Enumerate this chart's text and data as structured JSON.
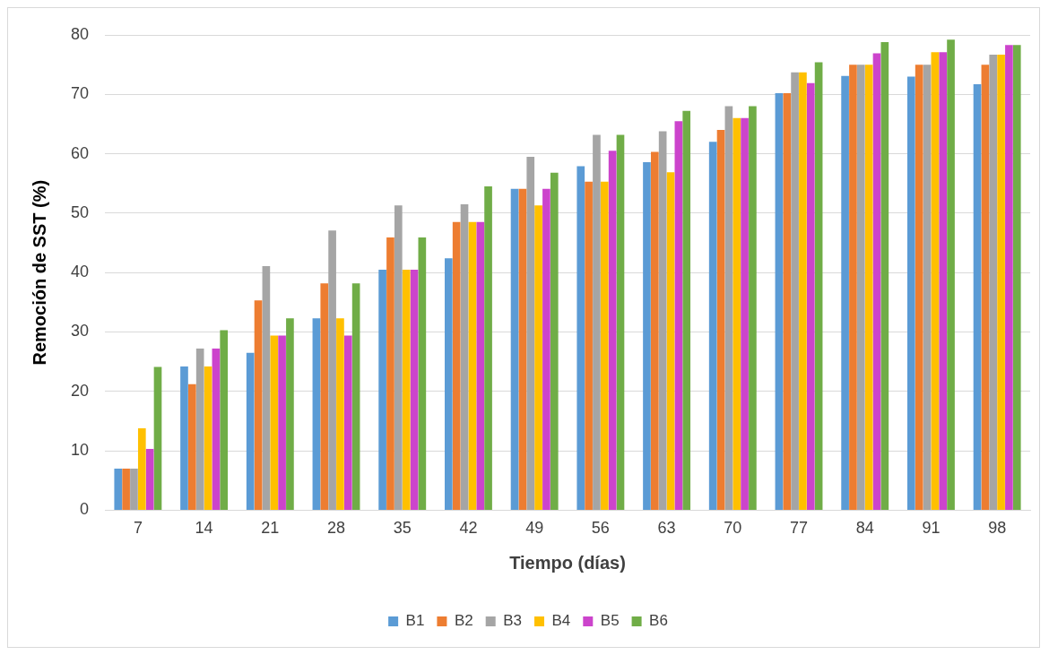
{
  "chart_data": {
    "type": "bar",
    "xlabel": "Tiempo (días)",
    "ylabel": "Remoción de SST (%)",
    "categories": [
      "7",
      "14",
      "21",
      "28",
      "35",
      "42",
      "49",
      "56",
      "63",
      "70",
      "77",
      "84",
      "91",
      "98"
    ],
    "ylim": [
      0,
      80
    ],
    "yticks": [
      0,
      10,
      20,
      30,
      40,
      50,
      60,
      70,
      80
    ],
    "grid": "y",
    "legend": "bottom",
    "series": [
      {
        "name": "B1",
        "color": "#5b9bd5",
        "values": [
          7.0,
          24.2,
          26.5,
          32.3,
          40.5,
          42.4,
          54.1,
          57.9,
          58.6,
          62.0,
          70.2,
          73.1,
          73.0,
          71.7
        ]
      },
      {
        "name": "B2",
        "color": "#ed7d31",
        "values": [
          7.0,
          21.2,
          35.3,
          38.2,
          45.9,
          48.5,
          54.1,
          55.3,
          60.3,
          64.0,
          70.2,
          75.0,
          75.0,
          75.0
        ]
      },
      {
        "name": "B3",
        "color": "#a5a5a5",
        "values": [
          7.0,
          27.2,
          41.1,
          47.1,
          51.3,
          51.5,
          59.5,
          63.2,
          63.8,
          68.0,
          73.7,
          75.0,
          75.0,
          76.7
        ]
      },
      {
        "name": "B4",
        "color": "#ffc000",
        "values": [
          13.8,
          24.2,
          29.4,
          32.3,
          40.5,
          48.5,
          51.3,
          55.3,
          56.9,
          66.0,
          73.7,
          75.0,
          77.1,
          76.7
        ]
      },
      {
        "name": "B5",
        "color": "#cc44cc",
        "values": [
          10.3,
          27.2,
          29.4,
          29.4,
          40.5,
          48.5,
          54.1,
          60.5,
          65.5,
          66.0,
          71.9,
          76.9,
          77.1,
          78.3
        ]
      },
      {
        "name": "B6",
        "color": "#70ad47",
        "values": [
          24.1,
          30.3,
          32.3,
          38.2,
          45.9,
          54.5,
          56.8,
          63.2,
          67.2,
          68.0,
          75.4,
          78.8,
          79.2,
          78.3
        ]
      }
    ]
  }
}
